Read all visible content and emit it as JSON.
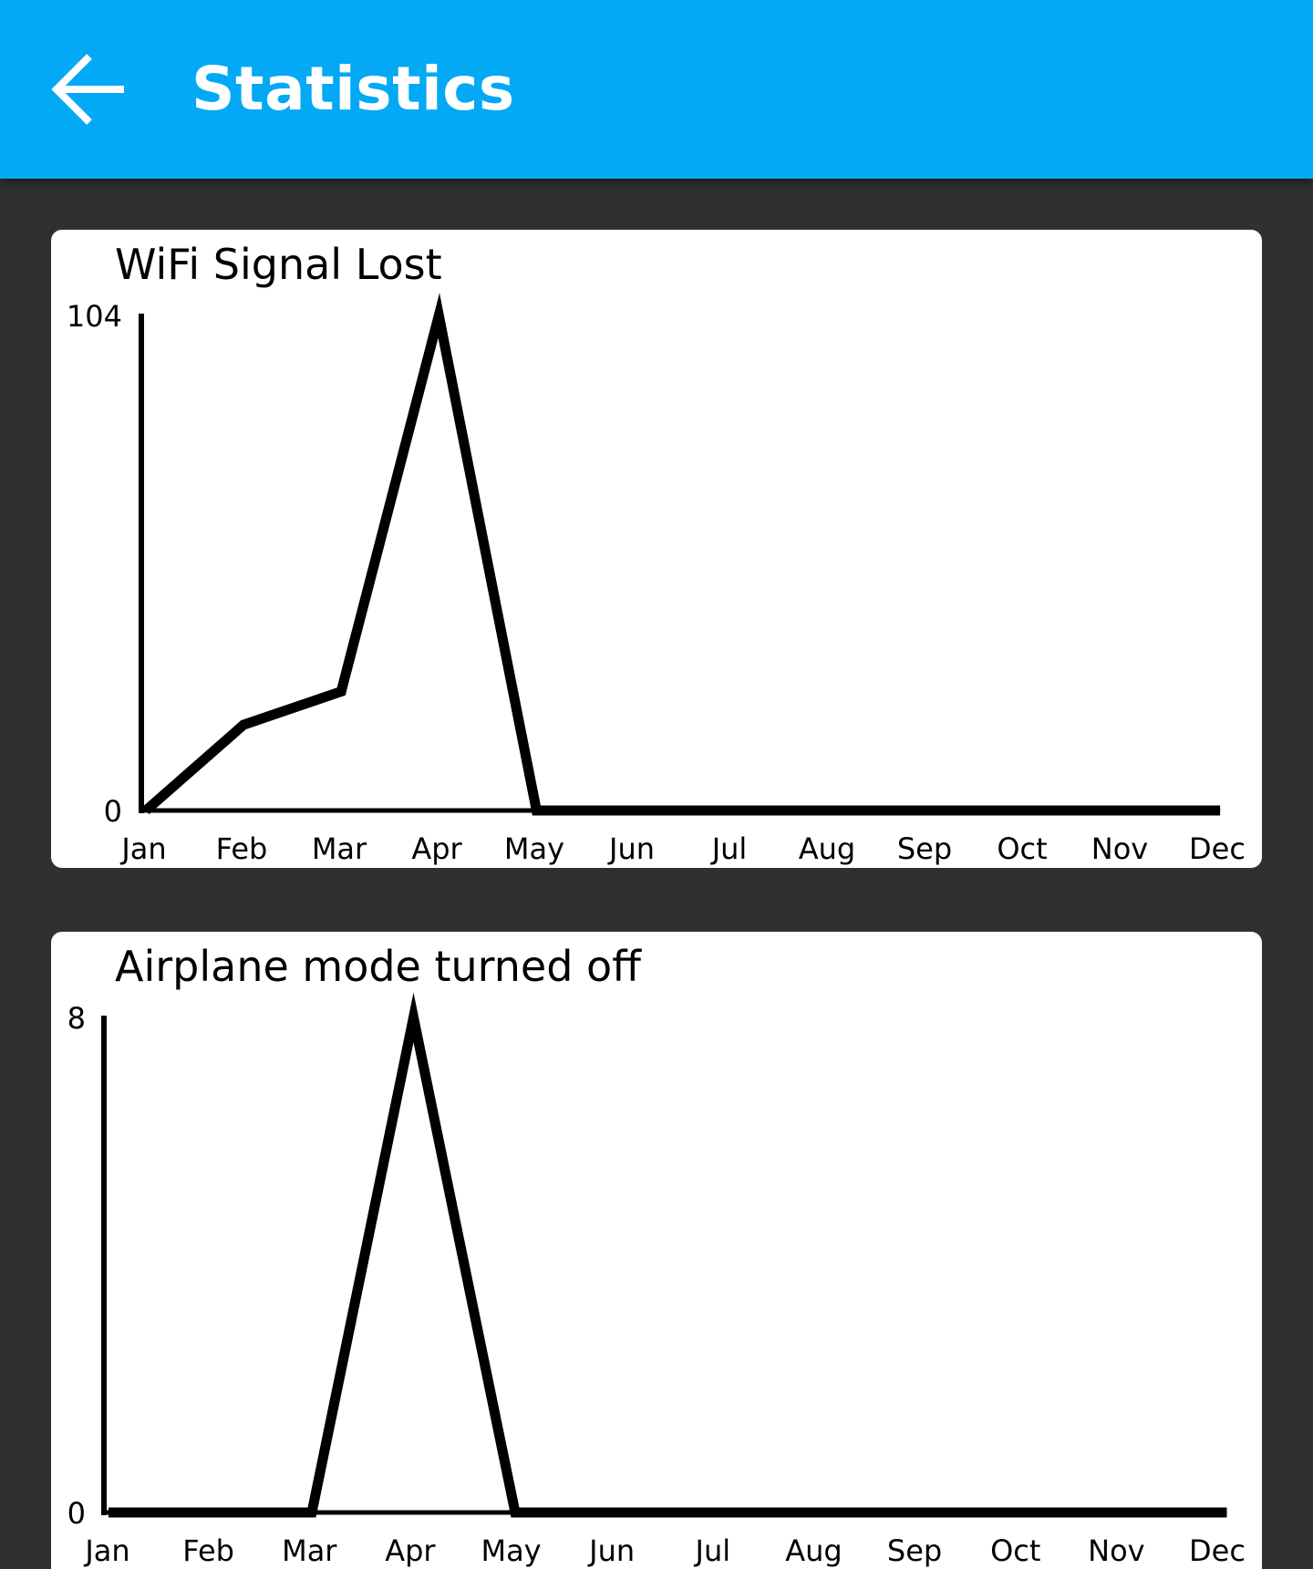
{
  "header": {
    "title": "Statistics",
    "background_color": "#03A9F4",
    "back_icon": "arrow-left-icon"
  },
  "page_background": "#303030",
  "chart_data": [
    {
      "type": "line",
      "title": "WiFi Signal Lost",
      "categories": [
        "Jan",
        "Feb",
        "Mar",
        "Apr",
        "May",
        "Jun",
        "Jul",
        "Aug",
        "Sep",
        "Oct",
        "Nov",
        "Dec"
      ],
      "values": [
        0,
        18,
        25,
        104,
        0,
        0,
        0,
        0,
        0,
        0,
        0,
        0
      ],
      "ylim": [
        0,
        104
      ],
      "y_ticks": [
        "0",
        "104"
      ],
      "grid": false,
      "line_color": "#000000"
    },
    {
      "type": "line",
      "title": "Airplane mode turned off",
      "categories": [
        "Jan",
        "Feb",
        "Mar",
        "Apr",
        "May",
        "Jun",
        "Jul",
        "Aug",
        "Sep",
        "Oct",
        "Nov",
        "Dec"
      ],
      "values": [
        0,
        0,
        0,
        8,
        0,
        0,
        0,
        0,
        0,
        0,
        0,
        0
      ],
      "ylim": [
        0,
        8
      ],
      "y_ticks": [
        "0",
        "8"
      ],
      "grid": false,
      "line_color": "#000000"
    }
  ]
}
